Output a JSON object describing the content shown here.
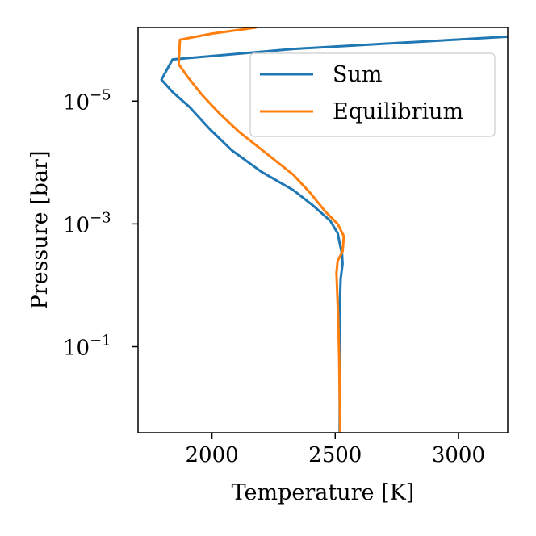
{
  "chart_data": {
    "type": "line",
    "title": "",
    "xlabel": "Temperature [K]",
    "ylabel": "Pressure [bar]",
    "xlim": [
      1700,
      3200
    ],
    "ylim_log10": [
      -6.2,
      0.4
    ],
    "yscale": "log",
    "y_inverted": true,
    "grid": false,
    "legend_position": "upper-right",
    "xticks": [
      {
        "value": 2000,
        "label": "2000"
      },
      {
        "value": 2500,
        "label": "2500"
      },
      {
        "value": 3000,
        "label": "3000"
      }
    ],
    "yticks": [
      {
        "log10": -5,
        "base": "10",
        "exp": "−5"
      },
      {
        "log10": -3,
        "base": "10",
        "exp": "−3"
      },
      {
        "log10": -1,
        "base": "10",
        "exp": "−1"
      }
    ],
    "series": [
      {
        "name": "Sum",
        "color": "#1f77b4",
        "points": [
          [
            3200,
            -6.05
          ],
          [
            2330,
            -5.85
          ],
          [
            1840,
            -5.68
          ],
          [
            1795,
            -5.35
          ],
          [
            1840,
            -5.15
          ],
          [
            1910,
            -4.9
          ],
          [
            1990,
            -4.55
          ],
          [
            2080,
            -4.2
          ],
          [
            2200,
            -3.85
          ],
          [
            2330,
            -3.55
          ],
          [
            2410,
            -3.3
          ],
          [
            2480,
            -3.05
          ],
          [
            2510,
            -2.85
          ],
          [
            2520,
            -2.65
          ],
          [
            2528,
            -2.5
          ],
          [
            2530,
            -2.35
          ],
          [
            2522,
            -2.1
          ],
          [
            2518,
            -1.6
          ],
          [
            2518,
            -1.0
          ],
          [
            2518,
            -0.5
          ],
          [
            2518,
            0.4
          ]
        ]
      },
      {
        "name": "Equilibrium",
        "color": "#ff7f0e",
        "points": [
          [
            2180,
            -6.2
          ],
          [
            2000,
            -6.1
          ],
          [
            1870,
            -6.0
          ],
          [
            1865,
            -5.6
          ],
          [
            1900,
            -5.4
          ],
          [
            1960,
            -5.1
          ],
          [
            2030,
            -4.8
          ],
          [
            2110,
            -4.5
          ],
          [
            2220,
            -4.15
          ],
          [
            2330,
            -3.8
          ],
          [
            2400,
            -3.5
          ],
          [
            2460,
            -3.2
          ],
          [
            2510,
            -3.0
          ],
          [
            2535,
            -2.8
          ],
          [
            2530,
            -2.55
          ],
          [
            2510,
            -2.4
          ],
          [
            2505,
            -2.2
          ],
          [
            2508,
            -1.9
          ],
          [
            2512,
            -1.5
          ],
          [
            2516,
            -0.8
          ],
          [
            2520,
            0.4
          ]
        ]
      }
    ]
  }
}
